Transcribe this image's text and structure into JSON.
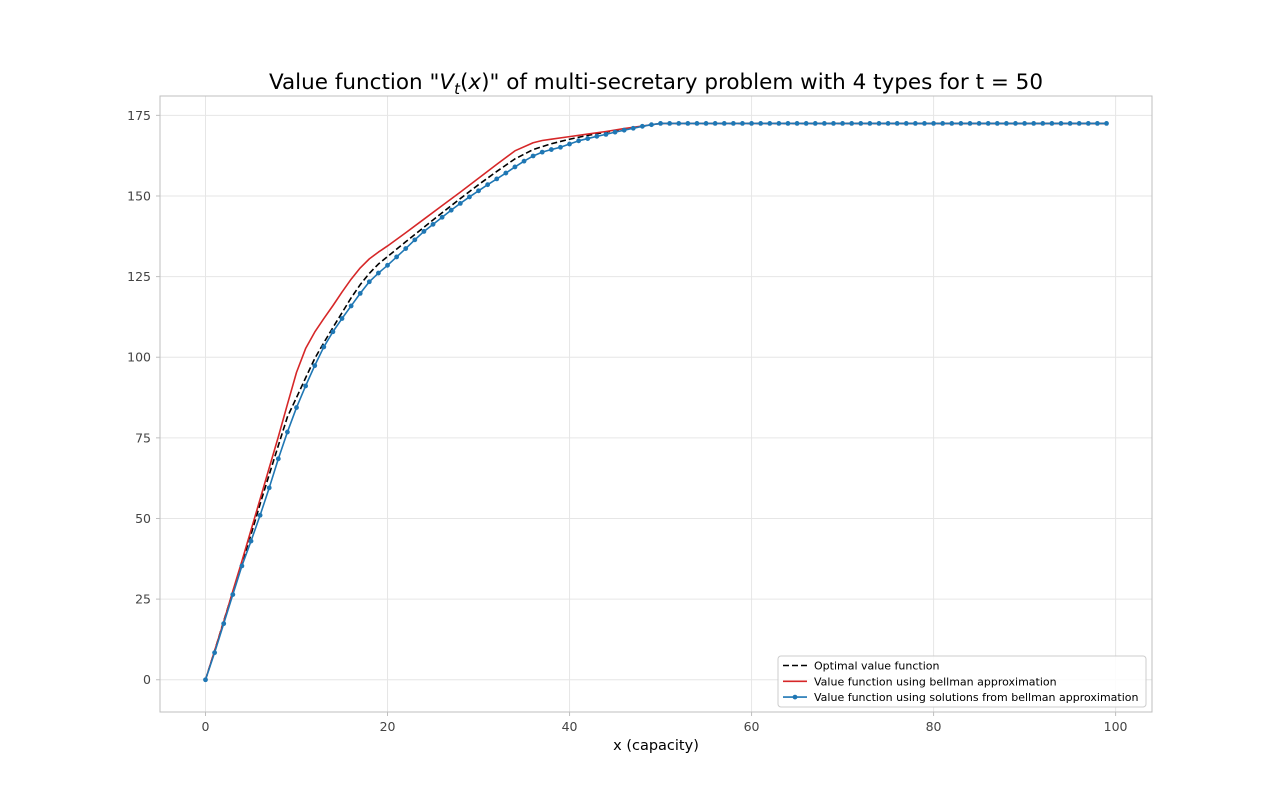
{
  "chart_data": {
    "type": "line",
    "title_prefix": "Value function \"",
    "title_math_base": "V",
    "title_math_sub": "t",
    "title_math_paren_open": "(",
    "title_math_arg": "x",
    "title_math_paren_close": ")",
    "title_suffix": "\" of multi-secretary problem with 4 types for t = 50",
    "xlabel": "x (capacity)",
    "ylabel": "",
    "xlim": [
      -5,
      104
    ],
    "ylim": [
      -10,
      181
    ],
    "xticks": [
      0,
      20,
      40,
      60,
      80,
      100
    ],
    "yticks": [
      0,
      25,
      50,
      75,
      100,
      125,
      150,
      175
    ],
    "xtick_labels": [
      "0",
      "20",
      "40",
      "60",
      "80",
      "100"
    ],
    "ytick_labels": [
      "0",
      "25",
      "50",
      "75",
      "100",
      "125",
      "150",
      "175"
    ],
    "grid": true,
    "legend_position": "lower-right",
    "series": [
      {
        "name": "Optimal value function",
        "color": "#000000",
        "style": "dashed",
        "markers": false,
        "x": [
          0,
          1,
          2,
          3,
          4,
          5,
          6,
          7,
          8,
          9,
          10,
          11,
          12,
          13,
          14,
          15,
          16,
          17,
          18,
          19,
          20,
          22,
          24,
          26,
          28,
          30,
          32,
          34,
          36,
          38,
          40,
          42,
          44,
          46,
          48,
          50,
          60,
          70,
          80,
          90,
          99
        ],
        "y": [
          0,
          8.9,
          18.2,
          27.2,
          36.2,
          45,
          54.5,
          63.6,
          72.6,
          81.5,
          87.5,
          93.6,
          99.6,
          104.5,
          109.2,
          113.8,
          118.4,
          122.5,
          126,
          128.9,
          131.2,
          135.8,
          140.3,
          144.8,
          149.2,
          153.5,
          157.6,
          161.5,
          164.4,
          166.2,
          167.6,
          168.8,
          169.8,
          170.8,
          171.6,
          172.5,
          172.5,
          172.5,
          172.5,
          172.5,
          172.5
        ]
      },
      {
        "name": "Value function using bellman approximation",
        "color": "#d62728",
        "style": "solid",
        "markers": false,
        "x": [
          0,
          1,
          2,
          3,
          4,
          5,
          6,
          7,
          8,
          9,
          10,
          11,
          12,
          13,
          14,
          15,
          16,
          17,
          18,
          19,
          20,
          22,
          24,
          26,
          28,
          30,
          32,
          34,
          36,
          37,
          38,
          40,
          42,
          44,
          46,
          48,
          50,
          60,
          70,
          80,
          90,
          99
        ],
        "y": [
          0,
          9,
          18,
          27.5,
          36.8,
          46.4,
          56,
          65.7,
          75.3,
          85.4,
          95.3,
          102.7,
          107.8,
          112,
          116,
          120.2,
          124.2,
          127.7,
          130.5,
          132.6,
          134.5,
          138.6,
          142.8,
          147,
          151.2,
          155.5,
          159.8,
          164,
          166.5,
          167.2,
          167.6,
          168.4,
          169.2,
          170,
          170.9,
          171.7,
          172.5,
          172.5,
          172.5,
          172.5,
          172.5,
          172.5
        ]
      },
      {
        "name": "Value function using solutions from bellman approximation",
        "color": "#1f77b4",
        "style": "solid",
        "markers": true,
        "x": [
          0,
          1,
          2,
          3,
          4,
          5,
          6,
          7,
          8,
          9,
          10,
          11,
          12,
          13,
          14,
          15,
          16,
          17,
          18,
          19,
          20,
          21,
          22,
          23,
          24,
          25,
          26,
          27,
          28,
          29,
          30,
          31,
          32,
          33,
          34,
          35,
          36,
          37,
          38,
          39,
          40,
          41,
          42,
          43,
          44,
          45,
          46,
          47,
          48,
          49,
          50,
          51,
          52,
          53,
          54,
          55,
          56,
          57,
          58,
          59,
          60,
          61,
          62,
          63,
          64,
          65,
          66,
          67,
          68,
          69,
          70,
          71,
          72,
          73,
          74,
          75,
          76,
          77,
          78,
          79,
          80,
          81,
          82,
          83,
          84,
          85,
          86,
          87,
          88,
          89,
          90,
          91,
          92,
          93,
          94,
          95,
          96,
          97,
          98,
          99
        ],
        "y": [
          0,
          8.4,
          17.4,
          26.4,
          35.3,
          43,
          51,
          59.5,
          68.5,
          76.8,
          84.4,
          91.1,
          97.4,
          103.2,
          107.9,
          112,
          115.9,
          119.8,
          123.4,
          126.1,
          128.5,
          131.1,
          133.7,
          136.4,
          139,
          141.2,
          143.4,
          145.6,
          147.7,
          149.7,
          151.6,
          153.5,
          155.3,
          157.1,
          159,
          160.8,
          162.4,
          163.6,
          164.4,
          165.1,
          166.1,
          167.1,
          167.8,
          168.5,
          169.1,
          169.8,
          170.4,
          171,
          171.6,
          172.1,
          172.5,
          172.5,
          172.5,
          172.5,
          172.5,
          172.5,
          172.5,
          172.5,
          172.5,
          172.5,
          172.5,
          172.5,
          172.5,
          172.5,
          172.5,
          172.5,
          172.5,
          172.5,
          172.5,
          172.5,
          172.5,
          172.5,
          172.5,
          172.5,
          172.5,
          172.5,
          172.5,
          172.5,
          172.5,
          172.5,
          172.5,
          172.5,
          172.5,
          172.5,
          172.5,
          172.5,
          172.5,
          172.5,
          172.5,
          172.5,
          172.5,
          172.5,
          172.5,
          172.5,
          172.5,
          172.5,
          172.5,
          172.5,
          172.5,
          172.5
        ]
      }
    ]
  }
}
